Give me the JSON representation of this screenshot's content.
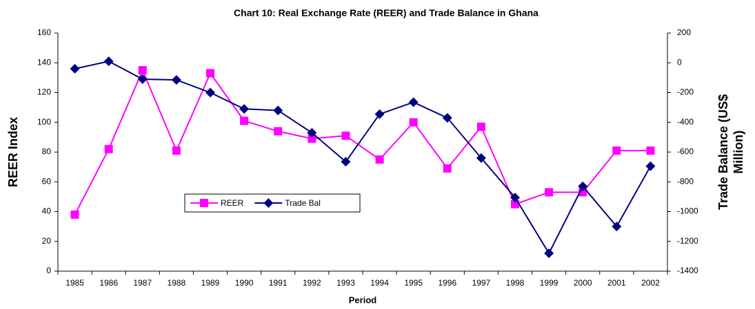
{
  "chart_data": {
    "type": "line",
    "title": "Chart 10: Real Exchange Rate (REER) and Trade Balance in Ghana",
    "xlabel": "Period",
    "ylabel": "REER Index",
    "y2label": [
      "Trade Balance (US$",
      "Million)"
    ],
    "categories": [
      "1985",
      "1986",
      "1987",
      "1988",
      "1989",
      "1990",
      "1991",
      "1992",
      "1993",
      "1994",
      "1995",
      "1996",
      "1997",
      "1998",
      "1999",
      "2000",
      "2001",
      "2002"
    ],
    "series": [
      {
        "name": "REER",
        "color": "#ff00ff",
        "marker": "square",
        "values": [
          38,
          82,
          135,
          81,
          133,
          101,
          94,
          89,
          91,
          75,
          100,
          69,
          97,
          45,
          53,
          53,
          81,
          81
        ]
      },
      {
        "name": "Trade Bal",
        "color": "#000080",
        "marker": "diamond",
        "axis": "y2",
        "values": [
          -40,
          10,
          -110,
          -115,
          -200,
          -310,
          -320,
          -470,
          -665,
          -345,
          -265,
          -370,
          -640,
          -905,
          -1280,
          -830,
          -1100,
          -695
        ]
      }
    ],
    "ylim": [
      0,
      160
    ],
    "yticks": [
      0,
      20,
      40,
      60,
      80,
      100,
      120,
      140,
      160
    ],
    "y2lim": [
      -1400,
      200
    ],
    "y2ticks": [
      -1400,
      -1200,
      -1000,
      -800,
      -600,
      -400,
      -200,
      0,
      200
    ],
    "grid": false
  }
}
